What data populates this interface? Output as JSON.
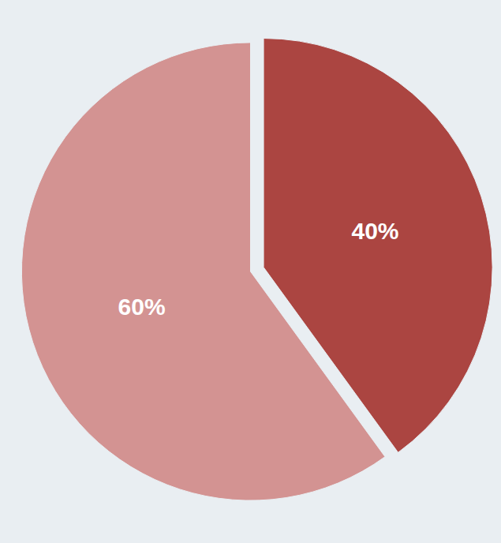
{
  "chart_data": {
    "type": "pie",
    "values": [
      40,
      60
    ],
    "value_labels": [
      "40%",
      "60%"
    ],
    "colors": [
      "#ab4541",
      "#d39392"
    ],
    "data_labels": true
  }
}
